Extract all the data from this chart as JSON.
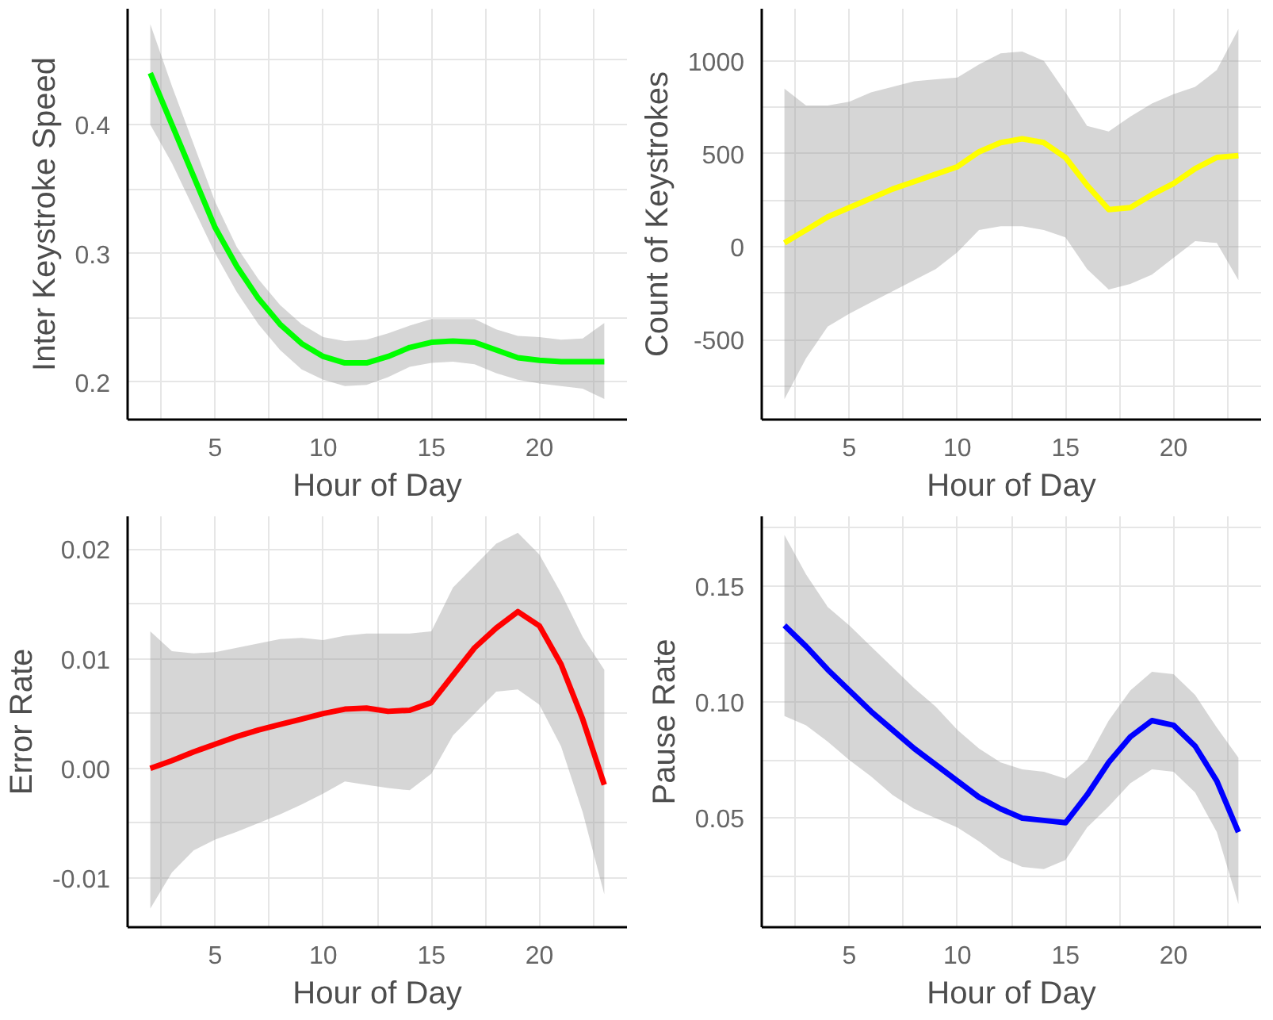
{
  "chart_data": [
    {
      "type": "line",
      "xlabel": "Hour of Day",
      "ylabel": "Inter Keystroke Speed",
      "x": [
        2,
        3,
        4,
        5,
        6,
        7,
        8,
        9,
        10,
        11,
        12,
        13,
        14,
        15,
        16,
        17,
        18,
        19,
        20,
        21,
        22,
        23
      ],
      "xlim": [
        0.95,
        24.05
      ],
      "ylim": [
        0.171,
        0.49
      ],
      "xticks": [
        {
          "value": 2.5,
          "label": null
        },
        5,
        {
          "value": 7.5,
          "label": null
        },
        10,
        {
          "value": 12.5,
          "label": null
        },
        15,
        {
          "value": 17.5,
          "label": null
        },
        20,
        {
          "value": 22.5,
          "label": null
        }
      ],
      "yticks": [
        {
          "value": 0.2,
          "label": "0.2"
        },
        {
          "value": 0.25,
          "label": null
        },
        {
          "value": 0.3,
          "label": "0.3"
        },
        {
          "value": 0.35,
          "label": null
        },
        {
          "value": 0.4,
          "label": "0.4"
        },
        {
          "value": 0.45,
          "label": null
        }
      ],
      "grid": true,
      "series": [
        {
          "color": "#00ff00",
          "values": [
            0.44,
            0.4,
            0.36,
            0.32,
            0.29,
            0.265,
            0.245,
            0.23,
            0.22,
            0.215,
            0.215,
            0.22,
            0.227,
            0.231,
            0.232,
            0.231,
            0.225,
            0.219,
            0.217,
            0.216,
            0.216,
            0.216
          ],
          "lower": [
            0.4,
            0.37,
            0.335,
            0.3,
            0.27,
            0.245,
            0.225,
            0.21,
            0.202,
            0.197,
            0.198,
            0.204,
            0.212,
            0.215,
            0.216,
            0.214,
            0.207,
            0.202,
            0.199,
            0.197,
            0.195,
            0.187
          ],
          "upper": [
            0.478,
            0.43,
            0.385,
            0.34,
            0.305,
            0.28,
            0.26,
            0.245,
            0.235,
            0.232,
            0.233,
            0.238,
            0.244,
            0.249,
            0.249,
            0.249,
            0.241,
            0.236,
            0.235,
            0.233,
            0.234,
            0.246
          ]
        }
      ]
    },
    {
      "type": "line",
      "xlabel": "Hour of Day",
      "ylabel": "Count of Keystrokes",
      "x": [
        2,
        3,
        4,
        5,
        6,
        7,
        8,
        9,
        10,
        11,
        12,
        13,
        14,
        15,
        16,
        17,
        18,
        19,
        20,
        21,
        22,
        23
      ],
      "xlim": [
        0.95,
        24.05
      ],
      "ylim": [
        -930,
        1280
      ],
      "xticks": [
        {
          "value": 2.5,
          "label": null
        },
        5,
        {
          "value": 7.5,
          "label": null
        },
        10,
        {
          "value": 12.5,
          "label": null
        },
        15,
        {
          "value": 17.5,
          "label": null
        },
        20,
        {
          "value": 22.5,
          "label": null
        }
      ],
      "yticks": [
        {
          "value": -750,
          "label": null
        },
        -500,
        {
          "value": -250,
          "label": null
        },
        0,
        {
          "value": 250,
          "label": null
        },
        500,
        {
          "value": 750,
          "label": null
        },
        1000
      ],
      "grid": true,
      "series": [
        {
          "color": "#ffff00",
          "values": [
            20,
            90,
            160,
            210,
            260,
            310,
            350,
            390,
            430,
            510,
            560,
            580,
            560,
            480,
            330,
            200,
            210,
            280,
            340,
            420,
            480,
            490
          ],
          "lower": [
            -820,
            -600,
            -430,
            -360,
            -300,
            -240,
            -180,
            -120,
            -30,
            90,
            110,
            110,
            90,
            50,
            -120,
            -230,
            -200,
            -150,
            -60,
            30,
            20,
            -180
          ],
          "upper": [
            850,
            760,
            760,
            780,
            830,
            860,
            890,
            900,
            910,
            980,
            1040,
            1050,
            1000,
            830,
            650,
            620,
            700,
            770,
            820,
            860,
            950,
            1170
          ]
        }
      ]
    },
    {
      "type": "line",
      "xlabel": "Hour of Day",
      "ylabel": "Error Rate",
      "x": [
        2,
        3,
        4,
        5,
        6,
        7,
        8,
        9,
        10,
        11,
        12,
        13,
        14,
        15,
        16,
        17,
        18,
        19,
        20,
        21,
        22,
        23
      ],
      "xlim": [
        0.95,
        24.05
      ],
      "ylim": [
        -0.0145,
        0.023
      ],
      "xticks": [
        {
          "value": 2.5,
          "label": null
        },
        5,
        {
          "value": 7.5,
          "label": null
        },
        10,
        {
          "value": 12.5,
          "label": null
        },
        15,
        {
          "value": 17.5,
          "label": null
        },
        20,
        {
          "value": 22.5,
          "label": null
        }
      ],
      "yticks": [
        {
          "value": -0.01,
          "label": "-0.01"
        },
        {
          "value": -0.005,
          "label": null
        },
        {
          "value": 0,
          "label": "0.00"
        },
        {
          "value": 0.005,
          "label": null
        },
        {
          "value": 0.01,
          "label": "0.01"
        },
        {
          "value": 0.015,
          "label": null
        },
        {
          "value": 0.02,
          "label": "0.02"
        }
      ],
      "grid": true,
      "series": [
        {
          "color": "#ff0000",
          "values": [
            0.0,
            0.0007,
            0.0015,
            0.0022,
            0.0029,
            0.0035,
            0.004,
            0.0045,
            0.005,
            0.0054,
            0.0055,
            0.0052,
            0.0053,
            0.006,
            0.0085,
            0.011,
            0.0128,
            0.0143,
            0.013,
            0.0095,
            0.0045,
            -0.0015
          ],
          "lower": [
            -0.0128,
            -0.0095,
            -0.0075,
            -0.0065,
            -0.0058,
            -0.005,
            -0.0042,
            -0.0033,
            -0.0023,
            -0.0012,
            -0.0015,
            -0.0018,
            -0.002,
            -0.0005,
            0.003,
            0.005,
            0.007,
            0.0072,
            0.0058,
            0.002,
            -0.004,
            -0.0115
          ],
          "upper": [
            0.0125,
            0.0107,
            0.0105,
            0.0106,
            0.011,
            0.0114,
            0.0118,
            0.0119,
            0.0117,
            0.0121,
            0.0123,
            0.0123,
            0.0123,
            0.0125,
            0.0165,
            0.0185,
            0.0205,
            0.0215,
            0.0195,
            0.016,
            0.012,
            0.009
          ]
        }
      ]
    },
    {
      "type": "line",
      "xlabel": "Hour of Day",
      "ylabel": "Pause Rate",
      "x": [
        2,
        3,
        4,
        5,
        6,
        7,
        8,
        9,
        10,
        11,
        12,
        13,
        14,
        15,
        16,
        17,
        18,
        19,
        20,
        21,
        22,
        23
      ],
      "xlim": [
        0.95,
        24.05
      ],
      "ylim": [
        0.003,
        0.18
      ],
      "xticks": [
        {
          "value": 2.5,
          "label": null
        },
        5,
        {
          "value": 7.5,
          "label": null
        },
        10,
        {
          "value": 12.5,
          "label": null
        },
        15,
        {
          "value": 17.5,
          "label": null
        },
        20,
        {
          "value": 22.5,
          "label": null
        }
      ],
      "yticks": [
        {
          "value": 0.025,
          "label": null
        },
        {
          "value": 0.05,
          "label": "0.05"
        },
        {
          "value": 0.075,
          "label": null
        },
        {
          "value": 0.1,
          "label": "0.10"
        },
        {
          "value": 0.125,
          "label": null
        },
        {
          "value": 0.15,
          "label": "0.15"
        },
        {
          "value": 0.175,
          "label": null
        }
      ],
      "grid": true,
      "series": [
        {
          "color": "#0000ff",
          "values": [
            0.133,
            0.124,
            0.114,
            0.105,
            0.096,
            0.088,
            0.08,
            0.073,
            0.066,
            0.059,
            0.054,
            0.05,
            0.049,
            0.048,
            0.06,
            0.074,
            0.085,
            0.092,
            0.09,
            0.081,
            0.066,
            0.044
          ],
          "lower": [
            0.094,
            0.09,
            0.083,
            0.075,
            0.068,
            0.06,
            0.054,
            0.05,
            0.046,
            0.04,
            0.033,
            0.029,
            0.028,
            0.032,
            0.046,
            0.055,
            0.065,
            0.071,
            0.07,
            0.061,
            0.044,
            0.013
          ],
          "upper": [
            0.172,
            0.155,
            0.141,
            0.133,
            0.124,
            0.115,
            0.106,
            0.098,
            0.088,
            0.08,
            0.074,
            0.071,
            0.07,
            0.067,
            0.075,
            0.092,
            0.105,
            0.113,
            0.112,
            0.103,
            0.089,
            0.076
          ]
        }
      ]
    }
  ]
}
